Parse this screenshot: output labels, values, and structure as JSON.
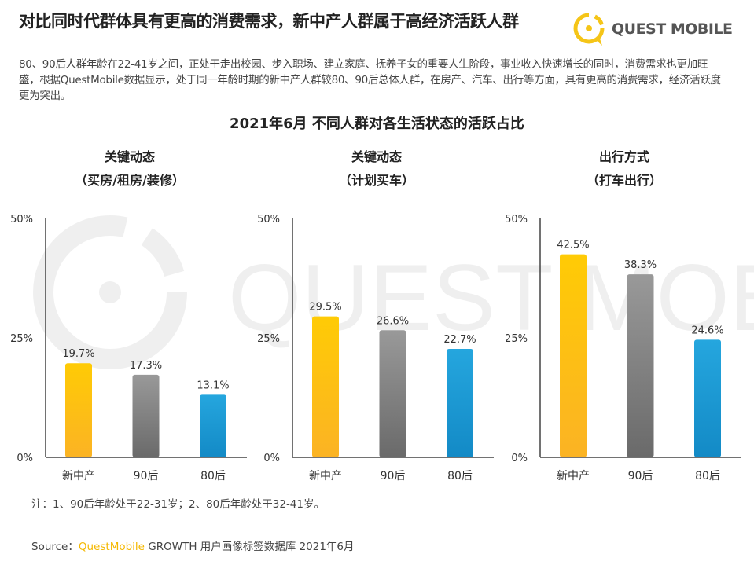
{
  "header": {
    "title": "对比同时代群体具有更高的消费需求，新中产人群属于高经济活跃人群",
    "description": "80、90后人群年龄在22-41岁之间，正处于走出校园、步入职场、建立家庭、抚养子女的重要人生阶段，事业收入快速增长的同时，消费需求也更加旺盛，根据QuestMobile数据显示，处于同一年龄时期的新中产人群较80、90后总体人群，在房产、汽车、出行等方面，具有更高的消费需求，经济活跃度更为突出。",
    "logo_text": "QUEST MOBILE",
    "watermark": "QUEST MOBILE"
  },
  "colors": {
    "yellow": "#fdbf12",
    "gray": "#7f7f7f",
    "blue": "#1e9ad6",
    "accent": "#f5b800"
  },
  "chart_data": [
    {
      "type": "bar",
      "title": "2021年6月 不同人群对各生活状态的活跃占比",
      "subtitle_line1": "关键动态",
      "subtitle_line2": "（买房/租房/装修）",
      "categories": [
        "新中产",
        "90后",
        "80后"
      ],
      "values": [
        19.7,
        17.3,
        13.1
      ],
      "labels": [
        "19.7%",
        "17.3%",
        "13.1%"
      ],
      "yticks": [
        "0%",
        "25%",
        "50%"
      ],
      "ylim": [
        0,
        50
      ]
    },
    {
      "type": "bar",
      "title": "2021年6月 不同人群对各生活状态的活跃占比",
      "subtitle_line1": "关键动态",
      "subtitle_line2": "（计划买车）",
      "categories": [
        "新中产",
        "90后",
        "80后"
      ],
      "values": [
        29.5,
        26.6,
        22.7
      ],
      "labels": [
        "29.5%",
        "26.6%",
        "22.7%"
      ],
      "yticks": [
        "0%",
        "25%",
        "50%"
      ],
      "ylim": [
        0,
        50
      ]
    },
    {
      "type": "bar",
      "title": "2021年6月 不同人群对各生活状态的活跃占比",
      "subtitle_line1": "出行方式",
      "subtitle_line2": "（打车出行）",
      "categories": [
        "新中产",
        "90后",
        "80后"
      ],
      "values": [
        42.5,
        38.3,
        24.6
      ],
      "labels": [
        "42.5%",
        "38.3%",
        "24.6%"
      ],
      "yticks": [
        "0%",
        "25%",
        "50%"
      ],
      "ylim": [
        0,
        50
      ]
    }
  ],
  "main_title": "2021年6月 不同人群对各生活状态的活跃占比",
  "footer": {
    "note": "注：1、90后年龄处于22-31岁；2、80后年龄处于32-41岁。",
    "source_prefix": "Source：",
    "source_brand": "QuestMobile",
    "source_rest": " GROWTH 用户画像标签数据库 2021年6月"
  }
}
